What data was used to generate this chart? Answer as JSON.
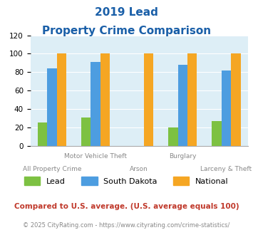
{
  "title_line1": "2019 Lead",
  "title_line2": "Property Crime Comparison",
  "categories": [
    "All Property Crime",
    "Motor Vehicle Theft",
    "Arson",
    "Burglary",
    "Larceny & Theft"
  ],
  "lead": [
    25,
    31,
    0,
    20,
    27
  ],
  "south_dakota": [
    84,
    91,
    0,
    88,
    82
  ],
  "national": [
    100,
    100,
    100,
    100,
    100
  ],
  "lead_color": "#7dc142",
  "south_dakota_color": "#4d9de0",
  "national_color": "#f5a623",
  "ylim": [
    0,
    120
  ],
  "yticks": [
    0,
    20,
    40,
    60,
    80,
    100,
    120
  ],
  "background_color": "#ddeef6",
  "title_color": "#1a5fa8",
  "footer_text": "Compared to U.S. average. (U.S. average equals 100)",
  "copyright_text": "© 2025 CityRating.com - https://www.cityrating.com/crime-statistics/",
  "footer_color": "#c0392b",
  "copyright_color": "#888888",
  "top_xlabels": [
    [
      1,
      "Motor Vehicle Theft"
    ],
    [
      3,
      "Burglary"
    ]
  ],
  "bottom_xlabels": [
    [
      0,
      "All Property Crime"
    ],
    [
      2,
      "Arson"
    ],
    [
      4,
      "Larceny & Theft"
    ]
  ]
}
